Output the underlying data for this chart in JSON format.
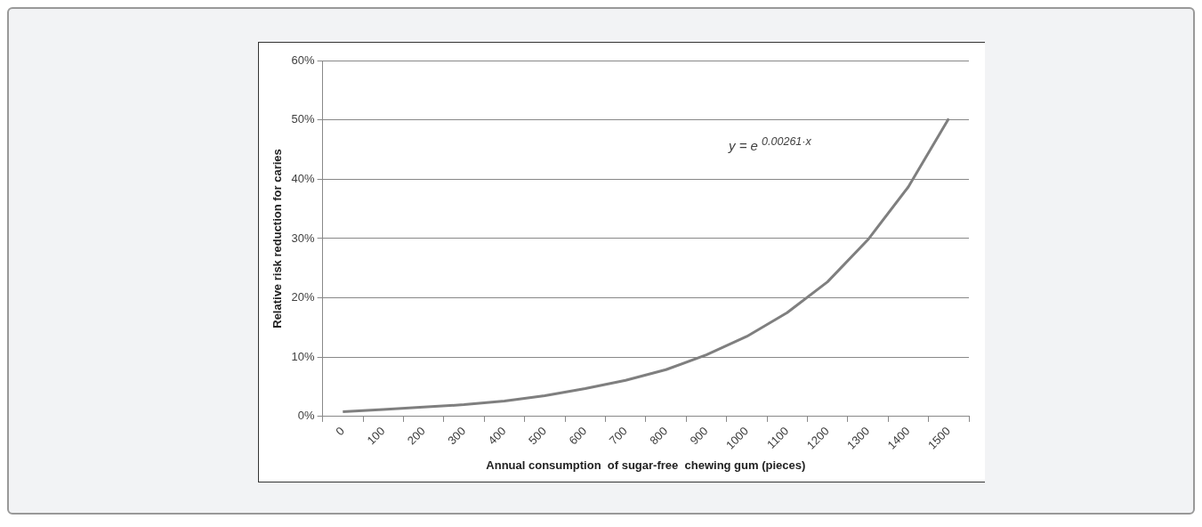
{
  "chart_data": {
    "type": "line",
    "xlabel": "Annual consumption  of sugar-free  chewing gum (pieces)",
    "ylabel": "Relative risk reduction for caries",
    "categories": [
      "0",
      "100",
      "200",
      "300",
      "400",
      "500",
      "600",
      "700",
      "800",
      "900",
      "1000",
      "1100",
      "1200",
      "1300",
      "1400",
      "1500"
    ],
    "series": [
      {
        "color": "#7f7f7f",
        "values": [
          0.8,
          1.2,
          1.6,
          2.0,
          2.6,
          3.5,
          4.7,
          6.1,
          7.9,
          10.4,
          13.5,
          17.5,
          22.7,
          29.8,
          38.7,
          50.2
        ]
      }
    ],
    "ylim": [
      0,
      60
    ],
    "yticks": [
      {
        "value": 0,
        "label": "0%"
      },
      {
        "value": 10,
        "label": "10%"
      },
      {
        "value": 20,
        "label": "20%"
      },
      {
        "value": 30,
        "label": "30%"
      },
      {
        "value": 40,
        "label": "40%"
      },
      {
        "value": 50,
        "label": "50%"
      },
      {
        "value": 60,
        "label": "60%"
      }
    ],
    "grid": "y",
    "annotations": [
      "y = e $^{0.00261·x}$"
    ]
  }
}
